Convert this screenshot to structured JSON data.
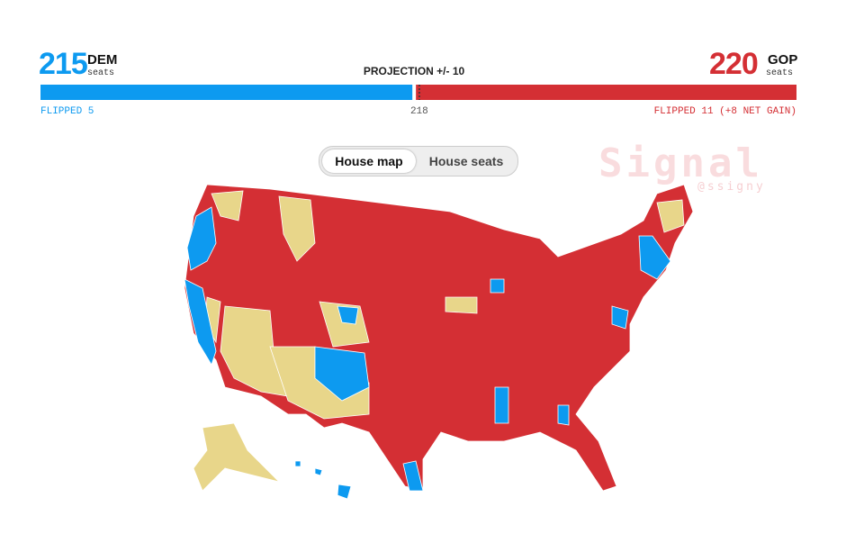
{
  "header": {
    "dem": {
      "seats": 215,
      "party": "DEM",
      "unit": "seats",
      "flipped": "FLIPPED 5",
      "color": "#0d9af0"
    },
    "gop": {
      "seats": 220,
      "party": "GOP",
      "unit": "seats",
      "flipped": "FLIPPED 11 (+8 NET GAIN)",
      "color": "#d42f34"
    },
    "projection": "PROJECTION +/- 10",
    "majority": 218
  },
  "tabs": [
    "House map",
    "House seats"
  ],
  "watermark": {
    "brand": "Signal",
    "handle": "@ssigny"
  }
}
